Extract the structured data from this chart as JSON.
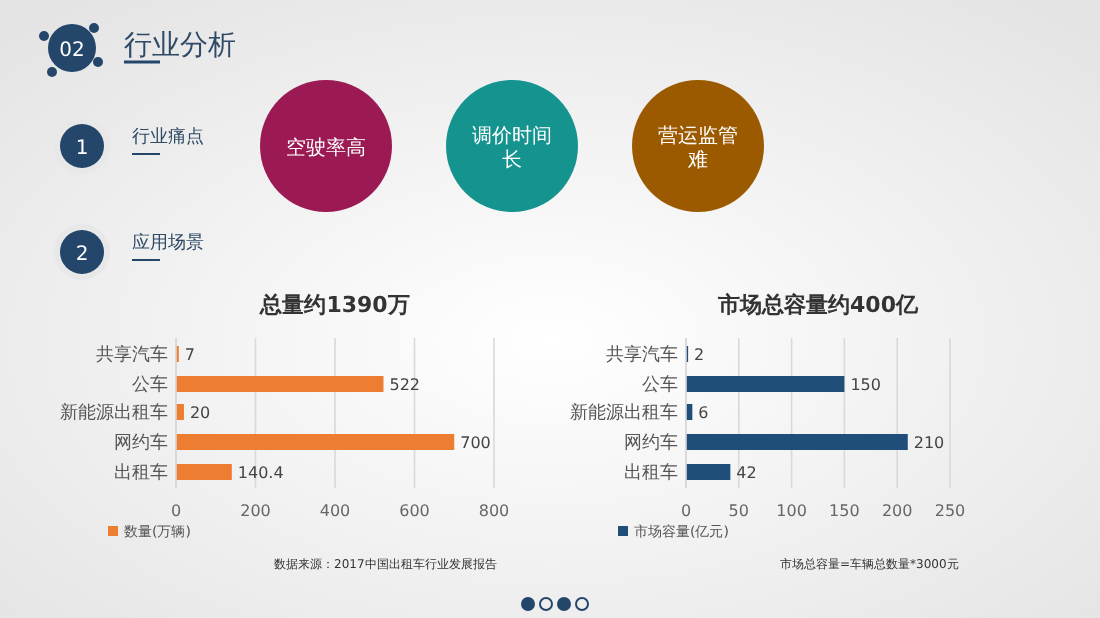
{
  "chart_data": [
    {
      "type": "other",
      "title": "行业分析",
      "annotations": [
        "02",
        "1",
        "行业痛点",
        "空驶率高",
        "调价时间长",
        "营运监管难",
        "2",
        "应用场景"
      ]
    },
    {
      "type": "bar",
      "orientation": "horizontal",
      "title": "总量约1390万",
      "categories": [
        "共享汽车",
        "公车",
        "新能源出租车",
        "网约车",
        "出租车"
      ],
      "series": [
        {
          "name": "数量(万辆)",
          "color": "#ed7d31",
          "values": [
            7,
            522,
            20,
            700,
            140.4
          ]
        }
      ],
      "xlim": [
        0,
        800
      ],
      "xticks": [
        0,
        200,
        400,
        600,
        800
      ],
      "grid": "x",
      "legend": "bottom left",
      "data_labels": true,
      "annotations": [
        "数据来源：2017中国出租车行业发展报告"
      ]
    },
    {
      "type": "bar",
      "orientation": "horizontal",
      "title": "市场总容量约400亿",
      "categories": [
        "共享汽车",
        "公车",
        "新能源出租车",
        "网约车",
        "出租车"
      ],
      "series": [
        {
          "name": "市场容量(亿元)",
          "color": "#1f4e79",
          "values": [
            2,
            150,
            6,
            210,
            42
          ]
        }
      ],
      "xlim": [
        0,
        250
      ],
      "xticks": [
        0,
        50,
        100,
        150,
        200,
        250
      ],
      "grid": "x",
      "legend": "bottom left",
      "data_labels": true,
      "annotations": [
        "市场总容量=车辆总数量*3000元"
      ]
    }
  ]
}
